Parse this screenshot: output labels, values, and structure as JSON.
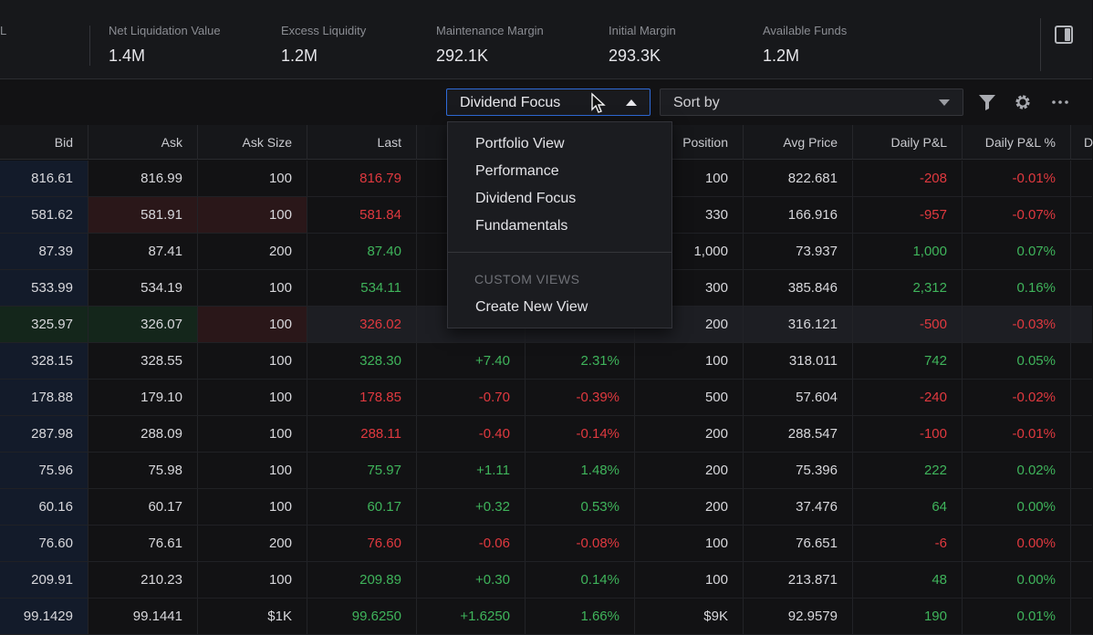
{
  "summary": {
    "lead_label": "L",
    "metrics": [
      {
        "label": "Net Liquidation Value",
        "value": "1.4M"
      },
      {
        "label": "Excess Liquidity",
        "value": "1.2M"
      },
      {
        "label": "Maintenance Margin",
        "value": "292.1K"
      },
      {
        "label": "Initial Margin",
        "value": "293.3K"
      },
      {
        "label": "Available Funds",
        "value": "1.2M"
      }
    ],
    "panel_icon": "panel-toggle-icon"
  },
  "toolbar": {
    "view_select": {
      "value": "Dividend Focus"
    },
    "sort_select": {
      "placeholder": "Sort by"
    },
    "icons": [
      "filter-icon",
      "gear-icon",
      "more-icon"
    ]
  },
  "dropdown": {
    "items": [
      "Portfolio View",
      "Performance",
      "Dividend Focus",
      "Fundamentals"
    ],
    "section_label": "CUSTOM VIEWS",
    "create_label": "Create New View"
  },
  "table": {
    "columns": [
      "Bid",
      "Ask",
      "Ask Size",
      "Last",
      "",
      "",
      "Position",
      "Avg Price",
      "Daily P&L",
      "Daily P&L %",
      "D"
    ],
    "rows": [
      {
        "bid": "816.61",
        "ask": "816.99",
        "ask_size": "100",
        "last": "816.79",
        "last_dir": "down",
        "chg": "",
        "chg_pct": "",
        "chg_dir": "",
        "position": "100",
        "avg_price": "822.681",
        "pnl": "-208",
        "pnl_pct": "-0.01%",
        "pnl_dir": "down"
      },
      {
        "bid": "581.62",
        "ask": "581.91",
        "ask_size": "100",
        "last": "581.84",
        "last_dir": "down",
        "chg": "",
        "chg_pct": "",
        "chg_dir": "",
        "position": "330",
        "avg_price": "166.916",
        "pnl": "-957",
        "pnl_pct": "-0.07%",
        "pnl_dir": "down"
      },
      {
        "bid": "87.39",
        "ask": "87.41",
        "ask_size": "200",
        "last": "87.40",
        "last_dir": "up",
        "chg": "",
        "chg_pct": "",
        "chg_dir": "",
        "position": "1,000",
        "avg_price": "73.937",
        "pnl": "1,000",
        "pnl_pct": "0.07%",
        "pnl_dir": "up"
      },
      {
        "bid": "533.99",
        "ask": "534.19",
        "ask_size": "100",
        "last": "534.11",
        "last_dir": "up",
        "chg": "",
        "chg_pct": "",
        "chg_dir": "",
        "position": "300",
        "avg_price": "385.846",
        "pnl": "2,312",
        "pnl_pct": "0.16%",
        "pnl_dir": "up"
      },
      {
        "bid": "325.97",
        "ask": "326.07",
        "ask_size": "100",
        "last": "326.02",
        "last_dir": "down",
        "chg": "",
        "chg_pct": "",
        "chg_dir": "",
        "position": "200",
        "avg_price": "316.121",
        "pnl": "-500",
        "pnl_pct": "-0.03%",
        "pnl_dir": "down"
      },
      {
        "bid": "328.15",
        "ask": "328.55",
        "ask_size": "100",
        "last": "328.30",
        "last_dir": "up",
        "chg": "+7.40",
        "chg_pct": "2.31%",
        "chg_dir": "up",
        "position": "100",
        "avg_price": "318.011",
        "pnl": "742",
        "pnl_pct": "0.05%",
        "pnl_dir": "up"
      },
      {
        "bid": "178.88",
        "ask": "179.10",
        "ask_size": "100",
        "last": "178.85",
        "last_dir": "down",
        "chg": "-0.70",
        "chg_pct": "-0.39%",
        "chg_dir": "down",
        "position": "500",
        "avg_price": "57.604",
        "pnl": "-240",
        "pnl_pct": "-0.02%",
        "pnl_dir": "down"
      },
      {
        "bid": "287.98",
        "ask": "288.09",
        "ask_size": "100",
        "last": "288.11",
        "last_dir": "down",
        "chg": "-0.40",
        "chg_pct": "-0.14%",
        "chg_dir": "down",
        "position": "200",
        "avg_price": "288.547",
        "pnl": "-100",
        "pnl_pct": "-0.01%",
        "pnl_dir": "down"
      },
      {
        "bid": "75.96",
        "ask": "75.98",
        "ask_size": "100",
        "last": "75.97",
        "last_dir": "up",
        "chg": "+1.11",
        "chg_pct": "1.48%",
        "chg_dir": "up",
        "position": "200",
        "avg_price": "75.396",
        "pnl": "222",
        "pnl_pct": "0.02%",
        "pnl_dir": "up"
      },
      {
        "bid": "60.16",
        "ask": "60.17",
        "ask_size": "100",
        "last": "60.17",
        "last_dir": "up",
        "chg": "+0.32",
        "chg_pct": "0.53%",
        "chg_dir": "up",
        "position": "200",
        "avg_price": "37.476",
        "pnl": "64",
        "pnl_pct": "0.00%",
        "pnl_dir": "up"
      },
      {
        "bid": "76.60",
        "ask": "76.61",
        "ask_size": "200",
        "last": "76.60",
        "last_dir": "down",
        "chg": "-0.06",
        "chg_pct": "-0.08%",
        "chg_dir": "down",
        "position": "100",
        "avg_price": "76.651",
        "pnl": "-6",
        "pnl_pct": "0.00%",
        "pnl_dir": "down"
      },
      {
        "bid": "209.91",
        "ask": "210.23",
        "ask_size": "100",
        "last": "209.89",
        "last_dir": "up",
        "chg": "+0.30",
        "chg_pct": "0.14%",
        "chg_dir": "up",
        "position": "100",
        "avg_price": "213.871",
        "pnl": "48",
        "pnl_pct": "0.00%",
        "pnl_dir": "up"
      },
      {
        "bid": "99.1429",
        "ask": "99.1441",
        "ask_size": "$1K",
        "last": "99.6250",
        "last_dir": "up",
        "chg": "+1.6250",
        "chg_pct": "1.66%",
        "chg_dir": "up",
        "position": "$9K",
        "avg_price": "92.9579",
        "pnl": "190",
        "pnl_pct": "0.01%",
        "pnl_dir": "up"
      }
    ]
  }
}
